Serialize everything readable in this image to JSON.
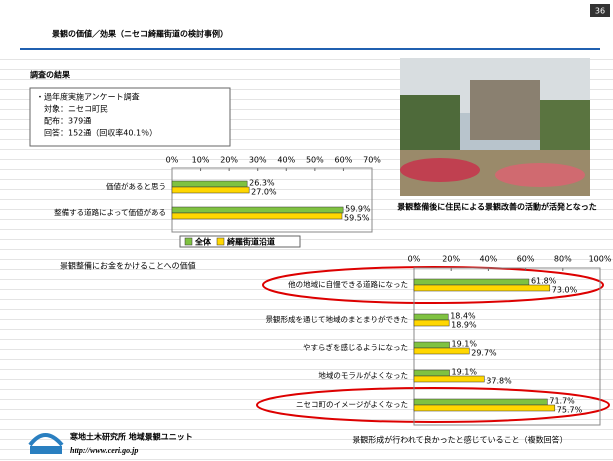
{
  "title": "景観の価値／効果（ニセコ綺羅街道の検討事例）",
  "page_number": "36",
  "survey": {
    "heading": "調査の結果",
    "lines": [
      "・過年度実施アンケート調査",
      "対象：ニセコ町民",
      "配布：379通",
      "回答：152通（回収率40.1％）"
    ]
  },
  "photo_caption": "景観整備後に住民による景観改善の活動が活発となった",
  "footer": {
    "org": "寒地土木研究所 地域景観ユニット",
    "url": "http://www.ceri.go.jp"
  },
  "chart_data": [
    {
      "type": "hbar",
      "caption": "景観整備にお金をかけることへの価値",
      "categories": [
        "価値があると思う",
        "整備する道路によって価値がある"
      ],
      "series": [
        {
          "name": "全体",
          "color": "#7fc241",
          "values": [
            26.3,
            59.9
          ],
          "value_labels": [
            "26.3%",
            "59.9%"
          ]
        },
        {
          "name": "綺羅街道沿道",
          "color": "#ffd700",
          "values": [
            27.0,
            59.5
          ],
          "value_labels": [
            "27.0%",
            "59.5%"
          ]
        }
      ],
      "xlim": [
        0,
        70
      ],
      "xticks": [
        {
          "value": 0,
          "label": "0%"
        },
        {
          "value": 10,
          "label": "10%"
        },
        {
          "value": 20,
          "label": "20%"
        },
        {
          "value": 30,
          "label": "30%"
        },
        {
          "value": 40,
          "label": "40%"
        },
        {
          "value": 50,
          "label": "50%"
        },
        {
          "value": 60,
          "label": "60%"
        },
        {
          "value": 70,
          "label": "70%"
        }
      ]
    },
    {
      "type": "hbar",
      "caption": "景観形成が行われて良かったと感じていること（複数回答）",
      "categories": [
        "他の地域に自慢できる道路になった",
        "景観形成を通じて地域のまとまりができた",
        "やすらぎを感じるようになった",
        "地域のモラルがよくなった",
        "ニセコ町のイメージがよくなった"
      ],
      "series": [
        {
          "color": "#7fc241",
          "values": [
            61.8,
            18.4,
            19.1,
            19.1,
            71.7
          ],
          "value_labels": [
            "61.8%",
            "18.4%",
            "19.1%",
            "19.1%",
            "71.7%"
          ]
        },
        {
          "color": "#ffd700",
          "values": [
            73.0,
            18.9,
            29.7,
            37.8,
            75.7
          ],
          "value_labels": [
            "73.0%",
            "18.9%",
            "29.7%",
            "37.8%",
            "75.7%"
          ]
        }
      ],
      "xlim": [
        0,
        100
      ],
      "xticks": [
        {
          "value": 0,
          "label": "0%"
        },
        {
          "value": 20,
          "label": "20%"
        },
        {
          "value": 40,
          "label": "40%"
        },
        {
          "value": 60,
          "label": "60%"
        },
        {
          "value": 80,
          "label": "80%"
        },
        {
          "value": 100,
          "label": "100%"
        }
      ]
    }
  ]
}
